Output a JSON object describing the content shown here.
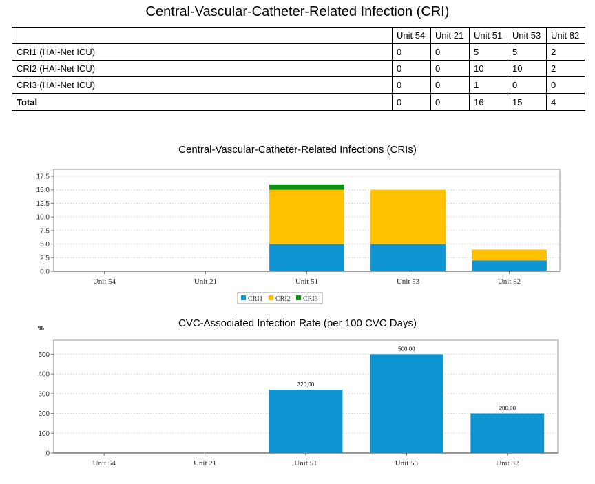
{
  "page_title": "Central-Vascular-Catheter-Related Infection (CRI)",
  "table": {
    "columns": [
      "Unit 54",
      "Unit 21",
      "Unit 51",
      "Unit 53",
      "Unit 82"
    ],
    "rows": [
      {
        "label": "CRI1 (HAI-Net ICU)",
        "values": [
          "0",
          "0",
          "5",
          "5",
          "2"
        ]
      },
      {
        "label": "CRI2 (HAI-Net ICU)",
        "values": [
          "0",
          "0",
          "10",
          "10",
          "2"
        ]
      },
      {
        "label": "CRI3 (HAI-Net ICU)",
        "values": [
          "0",
          "0",
          "1",
          "0",
          "0"
        ]
      }
    ],
    "total": {
      "label": "Total",
      "values": [
        "0",
        "0",
        "16",
        "15",
        "4"
      ]
    }
  },
  "chart_data": [
    {
      "type": "bar",
      "stacked": true,
      "title": "Central-Vascular-Catheter-Related Infections (CRIs)",
      "categories": [
        "Unit 54",
        "Unit 21",
        "Unit 51",
        "Unit 53",
        "Unit 82"
      ],
      "series": [
        {
          "name": "CRI1",
          "color": "#0f94d2",
          "values": [
            0,
            0,
            5,
            5,
            2
          ]
        },
        {
          "name": "CRI2",
          "color": "#ffc000",
          "values": [
            0,
            0,
            10,
            10,
            2
          ]
        },
        {
          "name": "CRI3",
          "color": "#109010",
          "values": [
            0,
            0,
            1,
            0,
            0
          ]
        }
      ],
      "ylim": [
        0,
        17.5
      ],
      "yticks": [
        "0.0",
        "2.5",
        "5.0",
        "7.5",
        "10.0",
        "12.5",
        "15.0",
        "17.5"
      ],
      "grid": true,
      "legend": "bottom-center"
    },
    {
      "type": "bar",
      "title": "CVC-Associated Infection Rate (per 100 CVC Days)",
      "ylabel": "%",
      "categories": [
        "Unit 54",
        "Unit 21",
        "Unit 51",
        "Unit 53",
        "Unit 82"
      ],
      "values": [
        0,
        0,
        320,
        500,
        200
      ],
      "data_labels": [
        "",
        "",
        "320,00",
        "500,00",
        "200,00"
      ],
      "color": "#0f94d2",
      "ylim": [
        0,
        550
      ],
      "yticks": [
        "0",
        "100",
        "200",
        "300",
        "400",
        "500"
      ],
      "grid": true
    }
  ]
}
